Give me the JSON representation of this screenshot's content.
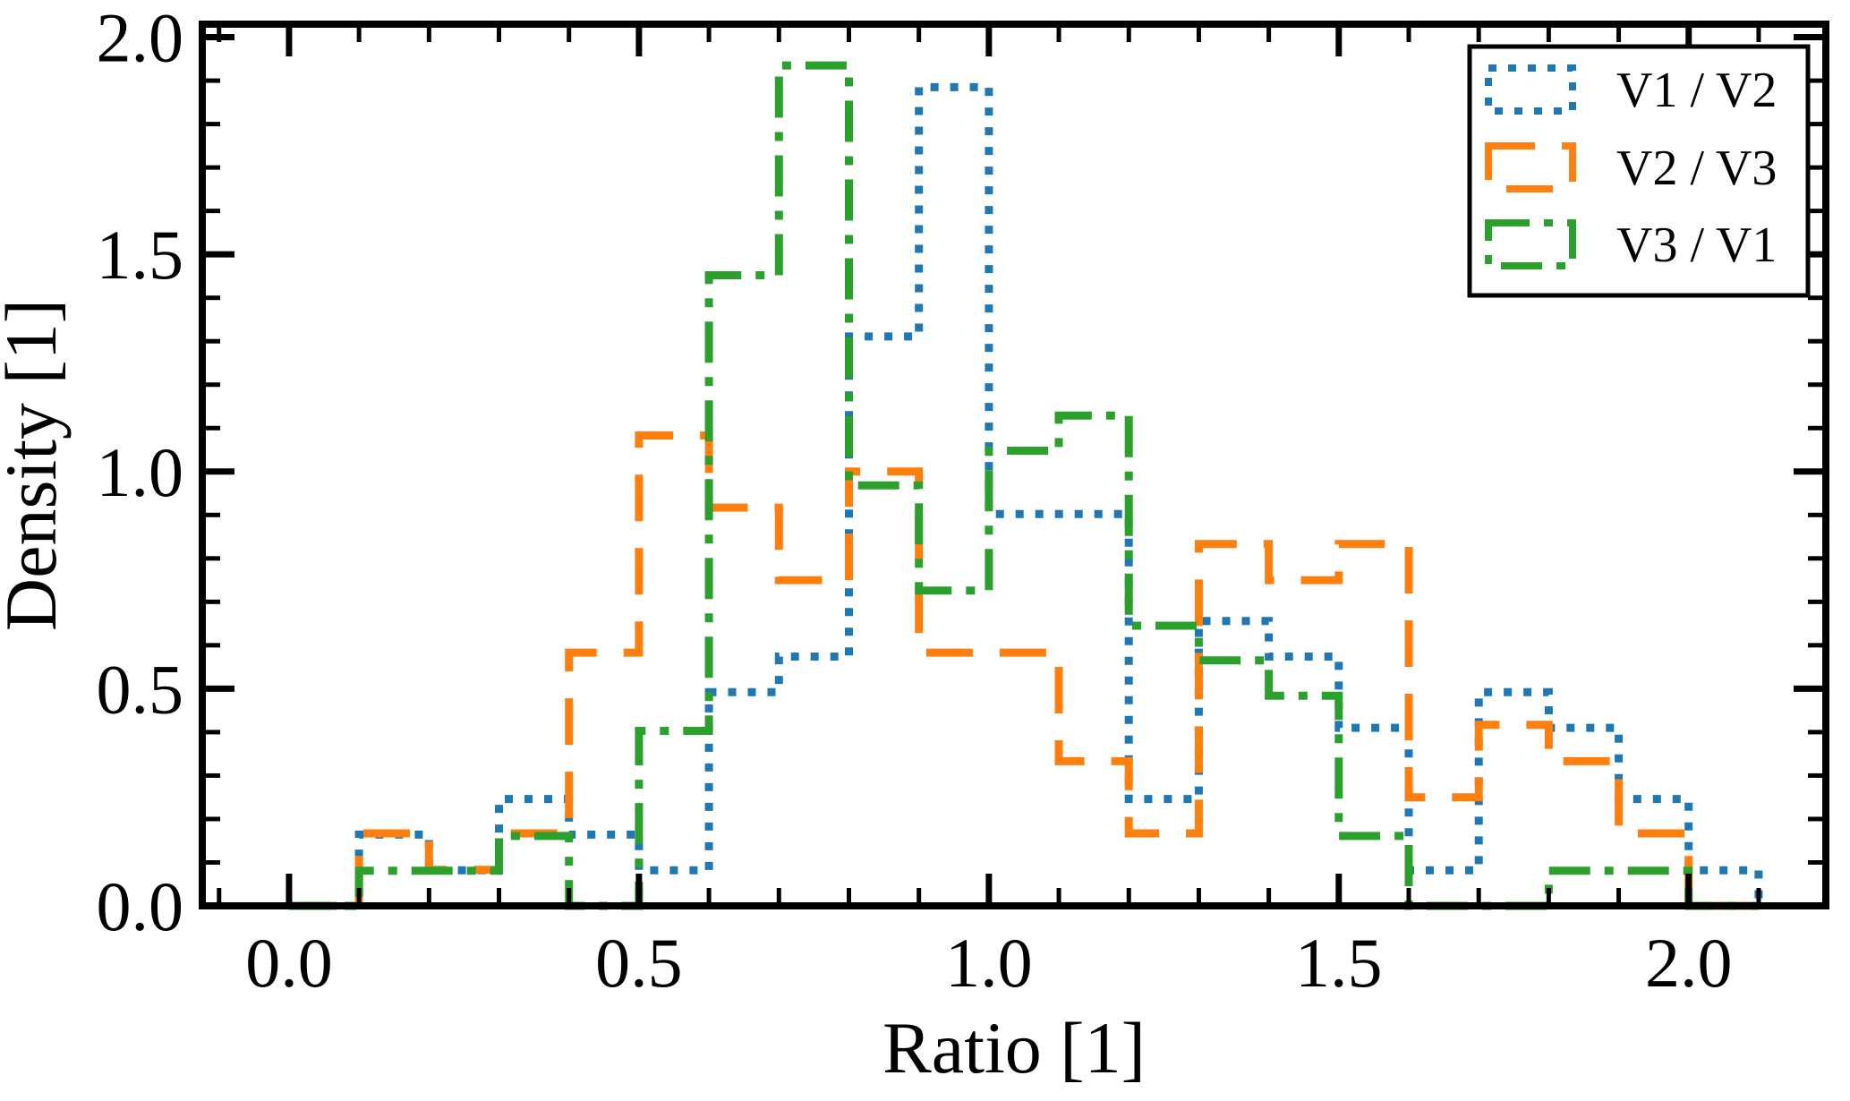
{
  "chart_data": {
    "type": "step-histogram",
    "title": "",
    "xlabel": "Ratio [1]",
    "ylabel": "Density [1]",
    "xlim": [
      -0.124,
      2.196
    ],
    "ylim": [
      0,
      2.03
    ],
    "grid": false,
    "legend_position": "upper right",
    "x_major_ticks": [
      0.0,
      0.5,
      1.0,
      1.5,
      2.0
    ],
    "x_tick_labels": [
      "0.0",
      "0.5",
      "1.0",
      "1.5",
      "2.0"
    ],
    "y_major_ticks": [
      0.0,
      0.5,
      1.0,
      1.5,
      2.0
    ],
    "y_tick_labels": [
      "0.0",
      "0.5",
      "1.0",
      "1.5",
      "2.0"
    ],
    "minor_tick_step": 0.1,
    "bin_width": 0.1,
    "bin_edges": [
      0.0,
      0.1,
      0.2,
      0.3,
      0.4,
      0.5,
      0.6,
      0.7,
      0.8,
      0.9,
      1.0,
      1.1,
      1.2,
      1.3,
      1.4,
      1.5,
      1.6,
      1.7,
      1.8,
      1.9,
      2.0,
      2.1
    ],
    "series": [
      {
        "name": "V1 / V2",
        "color": "#1f77b4",
        "linestyle": "dotted",
        "values": [
          0,
          0.164,
          0.082,
          0.246,
          0.164,
          0.082,
          0.492,
          0.574,
          1.311,
          1.885,
          0.902,
          0.902,
          0.246,
          0.656,
          0.574,
          0.41,
          0.082,
          0.492,
          0.41,
          0.246,
          0.082
        ]
      },
      {
        "name": "V2 / V3",
        "color": "#ff7f0e",
        "linestyle": "dashed",
        "values": [
          0,
          0.167,
          0.083,
          0.167,
          0.583,
          1.083,
          0.917,
          0.75,
          1.0,
          0.583,
          0.583,
          0.333,
          0.167,
          0.833,
          0.75,
          0.833,
          0.25,
          0.417,
          0.333,
          0.167,
          0
        ]
      },
      {
        "name": "V3 / V1",
        "color": "#2ca02c",
        "linestyle": "dashdot",
        "values": [
          0,
          0.081,
          0.081,
          0.161,
          0,
          0.403,
          1.452,
          1.935,
          0.968,
          0.726,
          1.048,
          1.129,
          0.645,
          0.565,
          0.484,
          0.161,
          0,
          0,
          0.081,
          0.081,
          0
        ]
      }
    ]
  }
}
